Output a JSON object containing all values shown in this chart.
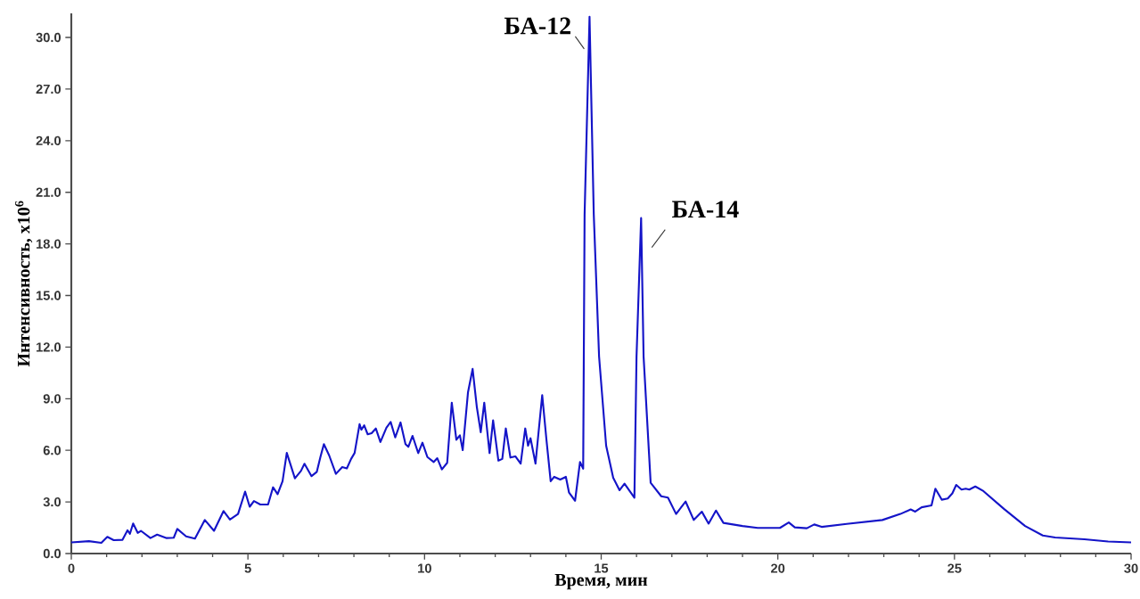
{
  "chart_data": {
    "type": "line",
    "xlabel": "Время, мин",
    "ylabel": "Интенсивность, x10$^{6}$",
    "xlim": [
      0,
      30
    ],
    "ylim": [
      0,
      31.4
    ],
    "xticks": [
      0,
      {
        "value": 1,
        "label": null
      },
      {
        "value": 2,
        "label": null
      },
      {
        "value": 3,
        "label": null
      },
      {
        "value": 4,
        "label": null
      },
      5,
      {
        "value": 6,
        "label": null
      },
      {
        "value": 7,
        "label": null
      },
      {
        "value": 8,
        "label": null
      },
      {
        "value": 9,
        "label": null
      },
      10,
      {
        "value": 11,
        "label": null
      },
      {
        "value": 12,
        "label": null
      },
      {
        "value": 13,
        "label": null
      },
      {
        "value": 14,
        "label": null
      },
      15,
      {
        "value": 16,
        "label": null
      },
      {
        "value": 17,
        "label": null
      },
      {
        "value": 18,
        "label": null
      },
      {
        "value": 19,
        "label": null
      },
      20,
      {
        "value": 21,
        "label": null
      },
      {
        "value": 22,
        "label": null
      },
      {
        "value": 23,
        "label": null
      },
      {
        "value": 24,
        "label": null
      },
      25,
      {
        "value": 26,
        "label": null
      },
      {
        "value": 27,
        "label": null
      },
      {
        "value": 28,
        "label": null
      },
      {
        "value": 29,
        "label": null
      },
      30
    ],
    "yticks": [
      {
        "value": 0,
        "label": "0.0"
      },
      {
        "value": 3,
        "label": "3.0"
      },
      {
        "value": 6,
        "label": "6.0"
      },
      {
        "value": 9,
        "label": "9.0"
      },
      {
        "value": 12,
        "label": "12.0"
      },
      {
        "value": 15,
        "label": "15.0"
      },
      {
        "value": 18,
        "label": "18.0"
      },
      {
        "value": 21,
        "label": "21.0"
      },
      {
        "value": 24,
        "label": "24.0"
      },
      {
        "value": 27,
        "label": "27.0"
      },
      {
        "value": 30,
        "label": "30.0"
      }
    ],
    "series": [
      {
        "color": "#1414c8",
        "x": [
          0,
          0.5,
          0.85,
          1.02,
          1.2,
          1.45,
          1.59,
          1.66,
          1.75,
          1.88,
          1.97,
          2.24,
          2.43,
          2.7,
          2.9,
          3.0,
          3.25,
          3.5,
          3.78,
          4.04,
          4.31,
          4.49,
          4.72,
          4.92,
          5.05,
          5.17,
          5.35,
          5.57,
          5.71,
          5.84,
          5.98,
          6.1,
          6.33,
          6.5,
          6.6,
          6.8,
          6.95,
          7.05,
          7.15,
          7.3,
          7.49,
          7.67,
          7.8,
          7.92,
          8.02,
          8.16,
          8.21,
          8.29,
          8.39,
          8.5,
          8.62,
          8.75,
          8.92,
          9.04,
          9.17,
          9.32,
          9.46,
          9.54,
          9.66,
          9.82,
          9.94,
          10.08,
          10.26,
          10.36,
          10.49,
          10.64,
          10.77,
          10.9,
          11.0,
          11.08,
          11.23,
          11.36,
          11.48,
          11.59,
          11.69,
          11.84,
          11.94,
          12.09,
          12.2,
          12.3,
          12.43,
          12.57,
          12.72,
          12.85,
          12.93,
          13.0,
          13.14,
          13.33,
          13.45,
          13.57,
          13.67,
          13.84,
          14.0,
          14.09,
          14.26,
          14.4,
          14.49,
          14.53,
          14.67,
          14.79,
          14.94,
          15.14,
          15.34,
          15.52,
          15.66,
          15.94,
          16.0,
          16.13,
          16.2,
          16.4,
          16.7,
          16.89,
          17.12,
          17.39,
          17.62,
          17.85,
          18.04,
          18.25,
          18.46,
          19.0,
          19.43,
          20.06,
          20.31,
          20.48,
          20.82,
          21.03,
          21.24,
          21.95,
          22.96,
          23.47,
          23.76,
          23.89,
          24.07,
          24.35,
          24.46,
          24.64,
          24.81,
          24.94,
          25.05,
          25.2,
          25.32,
          25.42,
          25.59,
          25.82,
          26.4,
          27.0,
          27.5,
          27.85,
          28.68,
          29.35,
          30.0
        ],
        "values": [
          0.65,
          0.72,
          0.62,
          0.97,
          0.78,
          0.8,
          1.35,
          1.15,
          1.75,
          1.2,
          1.32,
          0.9,
          1.1,
          0.9,
          0.92,
          1.43,
          1.0,
          0.87,
          1.95,
          1.32,
          2.47,
          1.98,
          2.3,
          3.6,
          2.72,
          3.05,
          2.85,
          2.85,
          3.85,
          3.45,
          4.2,
          5.85,
          4.37,
          4.8,
          5.22,
          4.5,
          4.75,
          5.6,
          6.36,
          5.7,
          4.63,
          5.03,
          4.95,
          5.5,
          5.85,
          7.52,
          7.2,
          7.45,
          6.93,
          7.0,
          7.27,
          6.48,
          7.31,
          7.65,
          6.75,
          7.62,
          6.36,
          6.2,
          6.84,
          5.84,
          6.44,
          5.61,
          5.32,
          5.54,
          4.89,
          5.27,
          8.77,
          6.61,
          6.87,
          6.01,
          9.38,
          10.73,
          8.51,
          7.05,
          8.77,
          5.84,
          7.74,
          5.4,
          5.5,
          7.27,
          5.58,
          5.65,
          5.23,
          7.27,
          6.27,
          6.7,
          5.23,
          9.21,
          6.62,
          4.2,
          4.46,
          4.3,
          4.46,
          3.54,
          3.07,
          5.32,
          4.93,
          19.7,
          31.2,
          19.7,
          11.45,
          6.27,
          4.4,
          3.68,
          4.06,
          3.25,
          11.45,
          19.5,
          11.45,
          4.11,
          3.33,
          3.25,
          2.3,
          3.02,
          1.95,
          2.43,
          1.74,
          2.5,
          1.78,
          1.6,
          1.49,
          1.49,
          1.81,
          1.52,
          1.47,
          1.69,
          1.55,
          1.72,
          1.95,
          2.3,
          2.56,
          2.44,
          2.69,
          2.8,
          3.77,
          3.13,
          3.2,
          3.5,
          3.99,
          3.72,
          3.77,
          3.72,
          3.9,
          3.63,
          2.6,
          1.6,
          1.05,
          0.93,
          0.83,
          0.7,
          0.65
        ]
      }
    ],
    "annotations": [
      {
        "text": "БА-12",
        "x": 14.67,
        "y": 31.2
      },
      {
        "text": "БА-14",
        "x": 16.13,
        "y": 19.5
      }
    ]
  }
}
